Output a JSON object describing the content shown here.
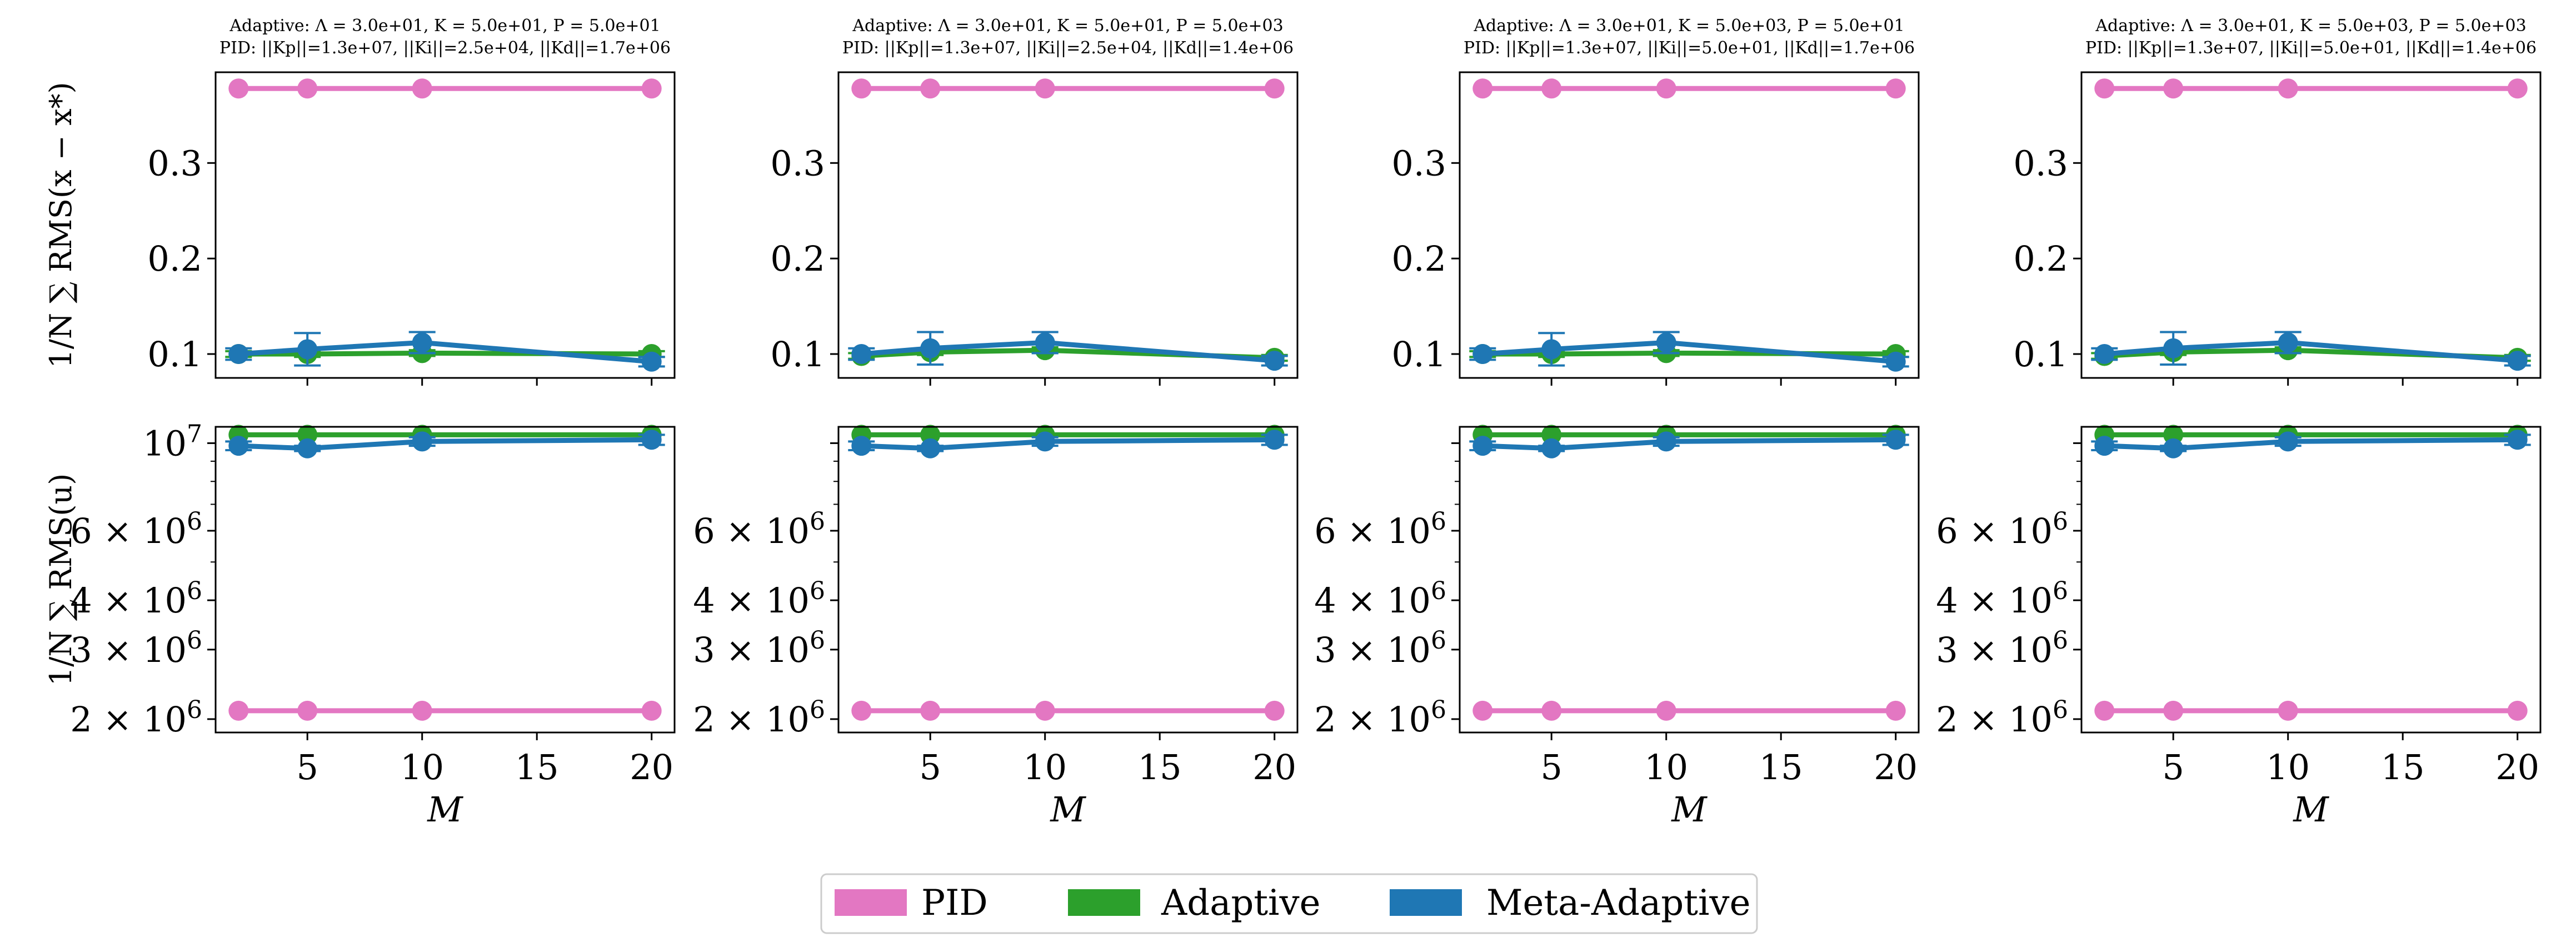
{
  "colors": {
    "PID": "#e377c2",
    "Adaptive": "#2ca02c",
    "Meta-Adaptive": "#1f77b4"
  },
  "legend": {
    "placement": "bottom-center",
    "items": [
      "PID",
      "Adaptive",
      "Meta-Adaptive"
    ]
  },
  "chart_data": [
    {
      "type": "line",
      "panel": "top-1",
      "title_lines": [
        "Adaptive: Λ = 3.0e+01, K = 5.0e+01, P = 5.0e+01",
        "PID: ||Kp||=1.3e+07, ||Ki||=2.5e+04, ||Kd||=1.7e+06"
      ],
      "ylabel": "1/N ∑ RMS(x − x*)",
      "xlabel": "",
      "xlim": [
        1.0,
        21.0
      ],
      "ylim": [
        0.075,
        0.395
      ],
      "yscale": "linear",
      "xticks": [
        5,
        10,
        15,
        20
      ],
      "xtick_labels": [
        "",
        "",
        "",
        ""
      ],
      "yticks": [
        0.1,
        0.2,
        0.3
      ],
      "ytick_labels": [
        "0.1",
        "0.2",
        "0.3"
      ],
      "x": [
        2,
        5,
        10,
        20
      ],
      "series": [
        {
          "name": "PID",
          "values": [
            0.378,
            0.378,
            0.378,
            0.378
          ],
          "err": [
            0,
            0,
            0,
            0
          ]
        },
        {
          "name": "Adaptive",
          "values": [
            0.1,
            0.1,
            0.101,
            0.1
          ],
          "err": [
            0.003,
            0.003,
            0.003,
            0.003
          ]
        },
        {
          "name": "Meta-Adaptive",
          "values": [
            0.1,
            0.105,
            0.112,
            0.092
          ],
          "err": [
            0.006,
            0.017,
            0.011,
            0.005
          ]
        }
      ]
    },
    {
      "type": "line",
      "panel": "top-2",
      "title_lines": [
        "Adaptive: Λ = 3.0e+01, K = 5.0e+01, P = 5.0e+03",
        "PID: ||Kp||=1.3e+07, ||Ki||=2.5e+04, ||Kd||=1.4e+06"
      ],
      "ylabel": "",
      "xlabel": "",
      "xlim": [
        1.0,
        21.0
      ],
      "ylim": [
        0.075,
        0.395
      ],
      "yscale": "linear",
      "xticks": [
        5,
        10,
        15,
        20
      ],
      "xtick_labels": [
        "",
        "",
        "",
        ""
      ],
      "yticks": [
        0.1,
        0.2,
        0.3
      ],
      "ytick_labels": [
        "0.1",
        "0.2",
        "0.3"
      ],
      "x": [
        2,
        5,
        10,
        20
      ],
      "series": [
        {
          "name": "PID",
          "values": [
            0.378,
            0.378,
            0.378,
            0.378
          ],
          "err": [
            0,
            0,
            0,
            0
          ]
        },
        {
          "name": "Adaptive",
          "values": [
            0.098,
            0.102,
            0.104,
            0.096
          ],
          "err": [
            0.003,
            0.003,
            0.003,
            0.003
          ]
        },
        {
          "name": "Meta-Adaptive",
          "values": [
            0.1,
            0.106,
            0.112,
            0.093
          ],
          "err": [
            0.006,
            0.017,
            0.011,
            0.005
          ]
        }
      ]
    },
    {
      "type": "line",
      "panel": "top-3",
      "title_lines": [
        "Adaptive: Λ = 3.0e+01, K = 5.0e+03, P = 5.0e+01",
        "PID: ||Kp||=1.3e+07, ||Ki||=5.0e+01, ||Kd||=1.7e+06"
      ],
      "ylabel": "",
      "xlabel": "",
      "xlim": [
        1.0,
        21.0
      ],
      "ylim": [
        0.075,
        0.395
      ],
      "yscale": "linear",
      "xticks": [
        5,
        10,
        15,
        20
      ],
      "xtick_labels": [
        "",
        "",
        "",
        ""
      ],
      "yticks": [
        0.1,
        0.2,
        0.3
      ],
      "ytick_labels": [
        "0.1",
        "0.2",
        "0.3"
      ],
      "x": [
        2,
        5,
        10,
        20
      ],
      "series": [
        {
          "name": "PID",
          "values": [
            0.378,
            0.378,
            0.378,
            0.378
          ],
          "err": [
            0,
            0,
            0,
            0
          ]
        },
        {
          "name": "Adaptive",
          "values": [
            0.1,
            0.1,
            0.101,
            0.1
          ],
          "err": [
            0.003,
            0.003,
            0.003,
            0.003
          ]
        },
        {
          "name": "Meta-Adaptive",
          "values": [
            0.1,
            0.105,
            0.112,
            0.092
          ],
          "err": [
            0.006,
            0.017,
            0.011,
            0.005
          ]
        }
      ]
    },
    {
      "type": "line",
      "panel": "top-4",
      "title_lines": [
        "Adaptive: Λ = 3.0e+01, K = 5.0e+03, P = 5.0e+03",
        "PID: ||Kp||=1.3e+07, ||Ki||=5.0e+01, ||Kd||=1.4e+06"
      ],
      "ylabel": "",
      "xlabel": "",
      "xlim": [
        1.0,
        21.0
      ],
      "ylim": [
        0.075,
        0.395
      ],
      "yscale": "linear",
      "xticks": [
        5,
        10,
        15,
        20
      ],
      "xtick_labels": [
        "",
        "",
        "",
        ""
      ],
      "yticks": [
        0.1,
        0.2,
        0.3
      ],
      "ytick_labels": [
        "0.1",
        "0.2",
        "0.3"
      ],
      "x": [
        2,
        5,
        10,
        20
      ],
      "series": [
        {
          "name": "PID",
          "values": [
            0.378,
            0.378,
            0.378,
            0.378
          ],
          "err": [
            0,
            0,
            0,
            0
          ]
        },
        {
          "name": "Adaptive",
          "values": [
            0.098,
            0.102,
            0.104,
            0.096
          ],
          "err": [
            0.003,
            0.003,
            0.003,
            0.003
          ]
        },
        {
          "name": "Meta-Adaptive",
          "values": [
            0.1,
            0.106,
            0.112,
            0.093
          ],
          "err": [
            0.006,
            0.017,
            0.011,
            0.005
          ]
        }
      ]
    },
    {
      "type": "line",
      "panel": "bottom-1",
      "title_lines": [],
      "ylabel": "1/N ∑ RMS(u)",
      "xlabel": "M",
      "xlim": [
        1.0,
        21.0
      ],
      "ylim": [
        1850000.0,
        11000000.0
      ],
      "yscale": "log",
      "xticks": [
        5,
        10,
        15,
        20
      ],
      "xtick_labels": [
        "5",
        "10",
        "15",
        "20"
      ],
      "yticks": [
        2000000.0,
        3000000.0,
        4000000.0,
        6000000.0,
        10000000.0
      ],
      "ytick_labels": [
        "2 × 10^6",
        "3 × 10^6",
        "4 × 10^6",
        "6 × 10^6",
        "10^7"
      ],
      "x": [
        2,
        5,
        10,
        20
      ],
      "series": [
        {
          "name": "PID",
          "values": [
            2100000.0,
            2100000.0,
            2100000.0,
            2100000.0
          ],
          "err": [
            0,
            0,
            0,
            0
          ]
        },
        {
          "name": "Adaptive",
          "values": [
            10500000.0,
            10500000.0,
            10500000.0,
            10500000.0
          ],
          "err": [
            0,
            0,
            0,
            0
          ]
        },
        {
          "name": "Meta-Adaptive",
          "values": [
            9850000.0,
            9700000.0,
            10100000.0,
            10200000.0
          ],
          "err": [
            250000.0,
            150000.0,
            250000.0,
            300000.0
          ]
        }
      ]
    },
    {
      "type": "line",
      "panel": "bottom-2",
      "title_lines": [],
      "ylabel": "",
      "xlabel": "M",
      "xlim": [
        1.0,
        21.0
      ],
      "ylim": [
        1850000.0,
        11000000.0
      ],
      "yscale": "log",
      "xticks": [
        5,
        10,
        15,
        20
      ],
      "xtick_labels": [
        "5",
        "10",
        "15",
        "20"
      ],
      "yticks": [
        2000000.0,
        3000000.0,
        4000000.0,
        6000000.0
      ],
      "ytick_labels": [
        "2 × 10^6",
        "3 × 10^6",
        "4 × 10^6",
        "6 × 10^6"
      ],
      "x": [
        2,
        5,
        10,
        20
      ],
      "series": [
        {
          "name": "PID",
          "values": [
            2100000.0,
            2100000.0,
            2100000.0,
            2100000.0
          ],
          "err": [
            0,
            0,
            0,
            0
          ]
        },
        {
          "name": "Adaptive",
          "values": [
            10500000.0,
            10500000.0,
            10500000.0,
            10500000.0
          ],
          "err": [
            0,
            0,
            0,
            0
          ]
        },
        {
          "name": "Meta-Adaptive",
          "values": [
            9850000.0,
            9700000.0,
            10100000.0,
            10200000.0
          ],
          "err": [
            250000.0,
            150000.0,
            250000.0,
            300000.0
          ]
        }
      ]
    },
    {
      "type": "line",
      "panel": "bottom-3",
      "title_lines": [],
      "ylabel": "",
      "xlabel": "M",
      "xlim": [
        1.0,
        21.0
      ],
      "ylim": [
        1850000.0,
        11000000.0
      ],
      "yscale": "log",
      "xticks": [
        5,
        10,
        15,
        20
      ],
      "xtick_labels": [
        "5",
        "10",
        "15",
        "20"
      ],
      "yticks": [
        2000000.0,
        3000000.0,
        4000000.0,
        6000000.0
      ],
      "ytick_labels": [
        "2 × 10^6",
        "3 × 10^6",
        "4 × 10^6",
        "6 × 10^6"
      ],
      "x": [
        2,
        5,
        10,
        20
      ],
      "series": [
        {
          "name": "PID",
          "values": [
            2100000.0,
            2100000.0,
            2100000.0,
            2100000.0
          ],
          "err": [
            0,
            0,
            0,
            0
          ]
        },
        {
          "name": "Adaptive",
          "values": [
            10500000.0,
            10500000.0,
            10500000.0,
            10500000.0
          ],
          "err": [
            0,
            0,
            0,
            0
          ]
        },
        {
          "name": "Meta-Adaptive",
          "values": [
            9850000.0,
            9700000.0,
            10100000.0,
            10200000.0
          ],
          "err": [
            250000.0,
            150000.0,
            250000.0,
            300000.0
          ]
        }
      ]
    },
    {
      "type": "line",
      "panel": "bottom-4",
      "title_lines": [],
      "ylabel": "",
      "xlabel": "M",
      "xlim": [
        1.0,
        21.0
      ],
      "ylim": [
        1850000.0,
        11000000.0
      ],
      "yscale": "log",
      "xticks": [
        5,
        10,
        15,
        20
      ],
      "xtick_labels": [
        "5",
        "10",
        "15",
        "20"
      ],
      "yticks": [
        2000000.0,
        3000000.0,
        4000000.0,
        6000000.0
      ],
      "ytick_labels": [
        "2 × 10^6",
        "3 × 10^6",
        "4 × 10^6",
        "6 × 10^6"
      ],
      "x": [
        2,
        5,
        10,
        20
      ],
      "series": [
        {
          "name": "PID",
          "values": [
            2100000.0,
            2100000.0,
            2100000.0,
            2100000.0
          ],
          "err": [
            0,
            0,
            0,
            0
          ]
        },
        {
          "name": "Adaptive",
          "values": [
            10500000.0,
            10500000.0,
            10500000.0,
            10500000.0
          ],
          "err": [
            0,
            0,
            0,
            0
          ]
        },
        {
          "name": "Meta-Adaptive",
          "values": [
            9850000.0,
            9700000.0,
            10100000.0,
            10200000.0
          ],
          "err": [
            250000.0,
            150000.0,
            250000.0,
            300000.0
          ]
        }
      ]
    }
  ]
}
